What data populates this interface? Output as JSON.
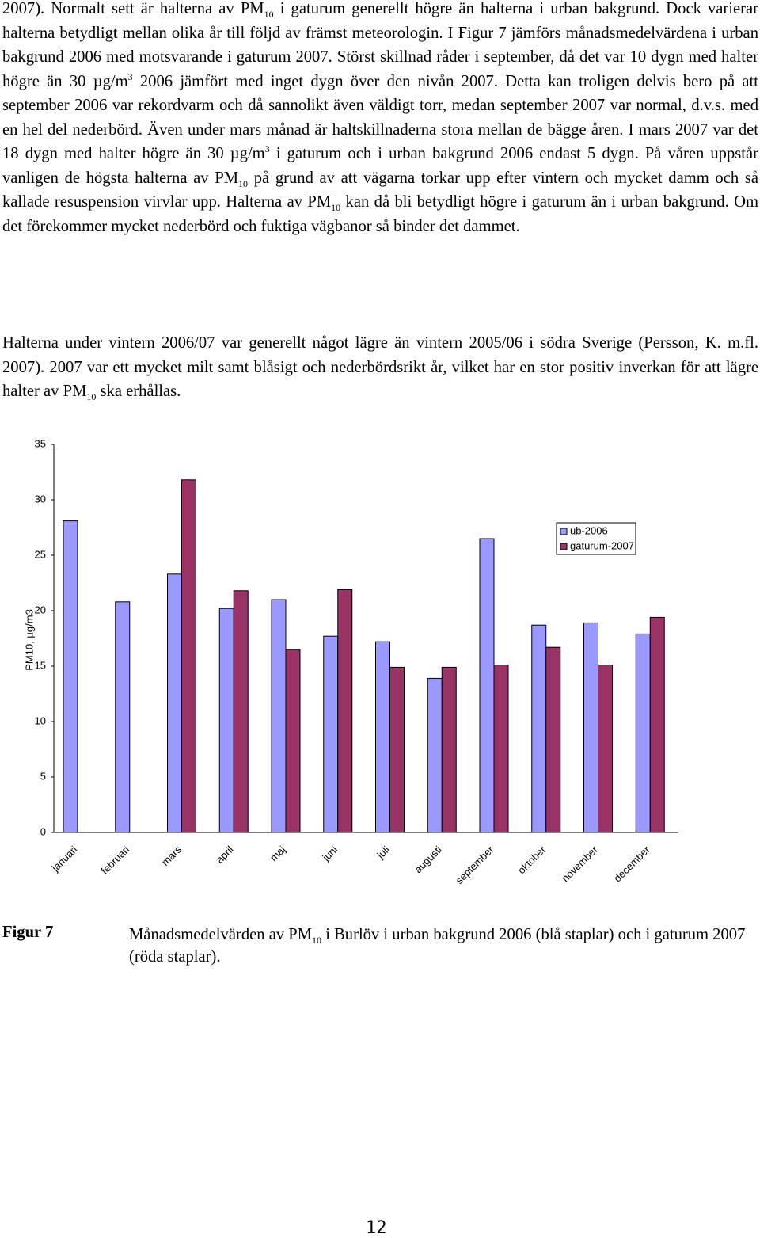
{
  "body": {
    "paragraphs": [
      [
        {
          "text": "2007). Normalt sett är halterna av PM"
        },
        {
          "sub": "10"
        },
        {
          "text": " i gaturum generellt högre än halterna i urban bakgrund. Dock varierar halterna betydligt mellan olika år till följd av främst meteorologin. I Figur 7 jämförs månadsmedelvärdena i urban bakgrund 2006 med motsvarande i gaturum 2007. Störst skillnad råder i september, då det var 10 dygn med halter högre än 30 µg/m"
        },
        {
          "sup": "3"
        },
        {
          "text": " 2006 jämfört med inget dygn över den nivån 2007. Detta kan troligen delvis bero på att september 2006 var rekordvarm och då sannolikt även väldigt torr, medan september 2007 var normal, d.v.s. med en hel del nederbörd. Även under mars månad är haltskillnaderna stora mellan de bägge åren. I mars 2007 var det 18 dygn med halter högre än 30 µg/m"
        },
        {
          "sup": "3"
        },
        {
          "text": " i gaturum och i urban bakgrund 2006 endast 5 dygn. På våren uppstår vanligen de högsta halterna av PM"
        },
        {
          "sub": "10"
        },
        {
          "text": " på grund av att vägarna torkar upp efter vintern och mycket damm och så kallade resuspension virvlar upp. Halterna av PM"
        },
        {
          "sub": "10"
        },
        {
          "text": " kan då bli betydligt högre i gaturum än i urban bakgrund. Om det förekommer mycket nederbörd och fuktiga vägbanor så binder det dammet."
        }
      ],
      [
        {
          "text": "Halterna under vintern 2006/07 var generellt något lägre än vintern 2005/06 i södra Sverige (Persson, K. m.fl. 2007). 2007 var ett mycket milt samt blåsigt och nederbördsrikt år, vilket har en stor positiv inverkan för att lägre halter av PM"
        },
        {
          "sub": "10"
        },
        {
          "text": " ska erhållas."
        }
      ]
    ]
  },
  "chart_data": {
    "type": "bar",
    "y_label": "PM10, µg/m3",
    "categories": [
      "januari",
      "februari",
      "mars",
      "april",
      "maj",
      "juni",
      "juli",
      "augusti",
      "september",
      "oktober",
      "november",
      "december"
    ],
    "series": [
      {
        "name": "ub-2006",
        "color": "#9999ff",
        "values": [
          28.1,
          20.8,
          23.3,
          20.2,
          21.0,
          17.7,
          17.2,
          13.9,
          26.5,
          18.7,
          18.9,
          17.9
        ]
      },
      {
        "name": "gaturum-2007",
        "color": "#993366",
        "values": [
          null,
          null,
          31.8,
          21.8,
          16.5,
          21.9,
          14.9,
          14.9,
          15.1,
          16.7,
          15.1,
          19.4
        ]
      }
    ],
    "ylim": [
      0,
      35
    ],
    "yticks": [
      0,
      5,
      10,
      15,
      20,
      25,
      30,
      35
    ],
    "grid": false,
    "legend": "upper right"
  },
  "caption": {
    "label": "Figur 7",
    "text": [
      {
        "text": "Månadsmedelvärden av PM"
      },
      {
        "sub": "10"
      },
      {
        "text": " i Burlöv i urban bakgrund 2006 (blå staplar) och i gaturum 2007 (röda staplar)."
      }
    ]
  },
  "page_number": "12"
}
